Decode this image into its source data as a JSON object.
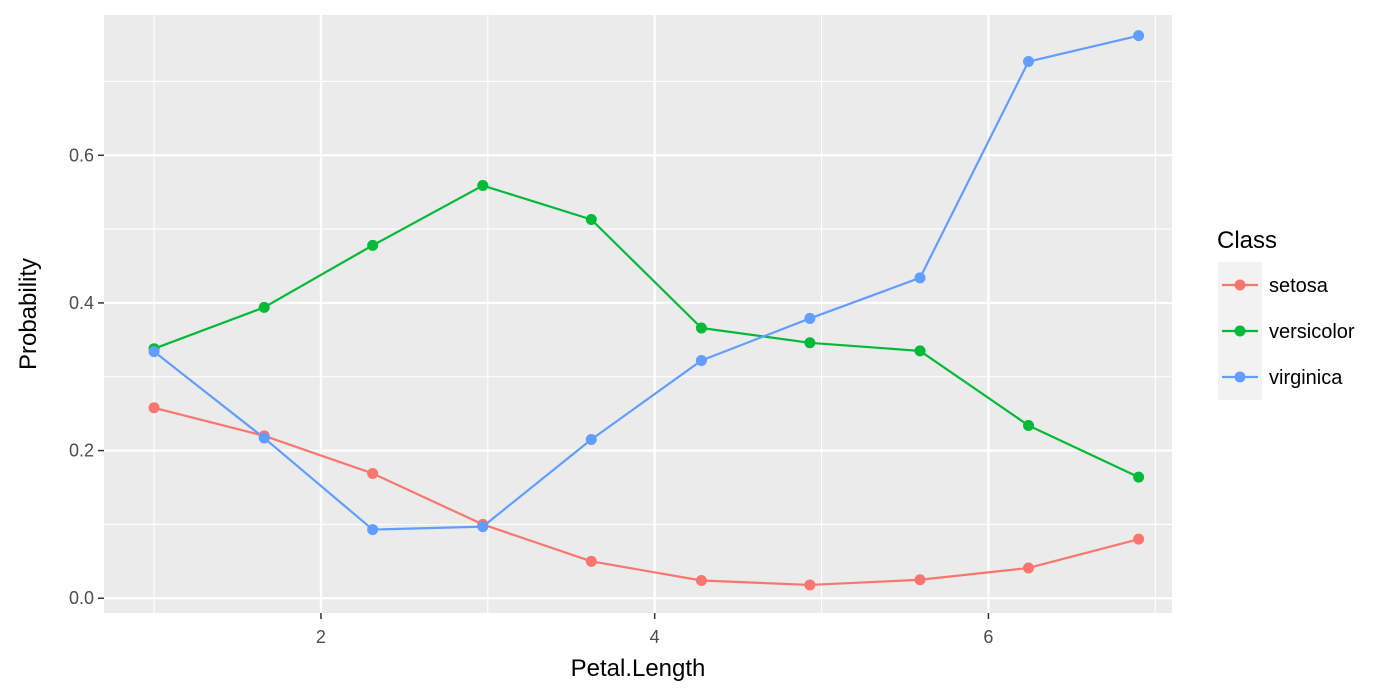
{
  "chart_data": {
    "type": "line",
    "xlabel": "Petal.Length",
    "ylabel": "Probability",
    "xlim": [
      0.7,
      7.1
    ],
    "ylim": [
      -0.02,
      0.79
    ],
    "x_ticks": [
      2,
      4,
      6
    ],
    "y_ticks": [
      0.0,
      0.2,
      0.4,
      0.6
    ],
    "x_tick_labels": [
      "2",
      "4",
      "6"
    ],
    "y_tick_labels": [
      "0.0",
      "0.2",
      "0.4",
      "0.6"
    ],
    "grid": true,
    "legend": {
      "title": "Class",
      "position": "right"
    },
    "x": [
      1.0,
      1.66,
      2.31,
      2.97,
      3.62,
      4.28,
      4.93,
      5.59,
      6.24,
      6.9
    ],
    "series": [
      {
        "name": "setosa",
        "color": "#F8766D",
        "values": [
          0.258,
          0.22,
          0.169,
          0.1,
          0.05,
          0.024,
          0.018,
          0.025,
          0.041,
          0.08
        ]
      },
      {
        "name": "versicolor",
        "color": "#00BA38",
        "values": [
          0.338,
          0.394,
          0.478,
          0.559,
          0.513,
          0.366,
          0.346,
          0.335,
          0.234,
          0.164
        ]
      },
      {
        "name": "virginica",
        "color": "#619CFF",
        "values": [
          0.334,
          0.217,
          0.093,
          0.097,
          0.215,
          0.322,
          0.379,
          0.434,
          0.727,
          0.762
        ]
      }
    ]
  }
}
